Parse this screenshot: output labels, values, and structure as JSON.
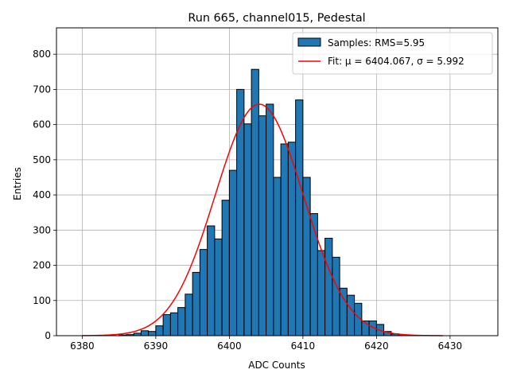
{
  "chart_data": {
    "type": "bar",
    "title": "Run 665, channel015, Pedestal",
    "xlabel": "ADC Counts",
    "ylabel": "Entries",
    "xlim": [
      6376.5,
      6436.5
    ],
    "ylim": [
      0,
      875
    ],
    "xticks": [
      6380,
      6390,
      6400,
      6410,
      6420,
      6430
    ],
    "yticks": [
      0,
      100,
      200,
      300,
      400,
      500,
      600,
      700,
      800
    ],
    "grid": true,
    "legend_position": "top-right",
    "bin_width": 1,
    "histogram": {
      "name": "Samples: RMS=5.95",
      "color": "#1f77b4",
      "edge_color": "#000000",
      "bins": [
        {
          "x": 6385,
          "y": 2
        },
        {
          "x": 6386,
          "y": 3
        },
        {
          "x": 6387,
          "y": 7
        },
        {
          "x": 6388,
          "y": 14
        },
        {
          "x": 6389,
          "y": 12
        },
        {
          "x": 6390,
          "y": 28
        },
        {
          "x": 6391,
          "y": 60
        },
        {
          "x": 6392,
          "y": 65
        },
        {
          "x": 6393,
          "y": 80
        },
        {
          "x": 6394,
          "y": 118
        },
        {
          "x": 6395,
          "y": 180
        },
        {
          "x": 6396,
          "y": 245
        },
        {
          "x": 6397,
          "y": 312
        },
        {
          "x": 6398,
          "y": 275
        },
        {
          "x": 6399,
          "y": 385
        },
        {
          "x": 6400,
          "y": 470
        },
        {
          "x": 6401,
          "y": 700
        },
        {
          "x": 6402,
          "y": 602
        },
        {
          "x": 6403,
          "y": 757
        },
        {
          "x": 6404,
          "y": 625
        },
        {
          "x": 6405,
          "y": 658
        },
        {
          "x": 6406,
          "y": 450
        },
        {
          "x": 6407,
          "y": 545
        },
        {
          "x": 6408,
          "y": 550
        },
        {
          "x": 6409,
          "y": 670
        },
        {
          "x": 6410,
          "y": 450
        },
        {
          "x": 6411,
          "y": 347
        },
        {
          "x": 6412,
          "y": 242
        },
        {
          "x": 6413,
          "y": 277
        },
        {
          "x": 6414,
          "y": 223
        },
        {
          "x": 6415,
          "y": 135
        },
        {
          "x": 6416,
          "y": 115
        },
        {
          "x": 6417,
          "y": 92
        },
        {
          "x": 6418,
          "y": 42
        },
        {
          "x": 6419,
          "y": 42
        },
        {
          "x": 6420,
          "y": 32
        },
        {
          "x": 6421,
          "y": 12
        },
        {
          "x": 6422,
          "y": 5
        },
        {
          "x": 6423,
          "y": 2
        }
      ]
    },
    "fit": {
      "name": "Fit: μ = 6404.067, σ = 5.992",
      "color": "#ff0000",
      "x_range": [
        6380,
        6429
      ],
      "amplitude": 658,
      "mean": 6404.067,
      "sigma": 5.992
    }
  }
}
